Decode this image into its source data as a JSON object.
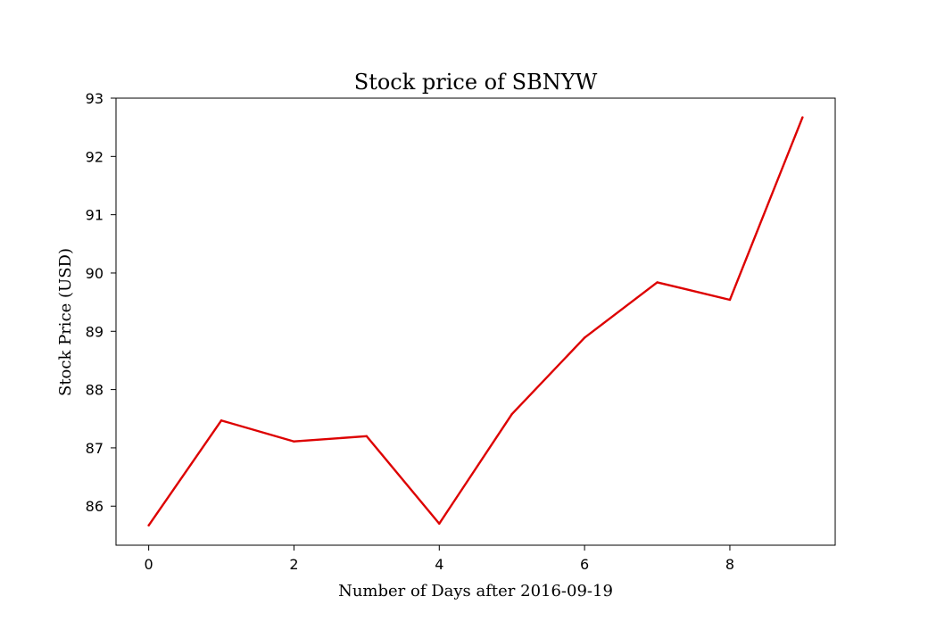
{
  "chart_data": {
    "type": "line",
    "title": "Stock price of SBNYW",
    "xlabel": "Number of Days after 2016-09-19",
    "ylabel": "Stock Price (USD)",
    "x": [
      0,
      1,
      2,
      3,
      4,
      5,
      6,
      7,
      8,
      9
    ],
    "series": [
      {
        "name": "SBNYW",
        "color": "#dd0000",
        "values": [
          85.67,
          87.47,
          87.11,
          87.2,
          85.7,
          87.58,
          88.89,
          89.84,
          89.54,
          92.67
        ]
      }
    ],
    "xlim": [
      -0.45,
      9.45
    ],
    "ylim": [
      85.33,
      93.0
    ],
    "xticks": [
      0,
      2,
      4,
      6,
      8
    ],
    "yticks": [
      86,
      87,
      88,
      89,
      90,
      91,
      92,
      93
    ],
    "grid": false,
    "legend": "none"
  }
}
